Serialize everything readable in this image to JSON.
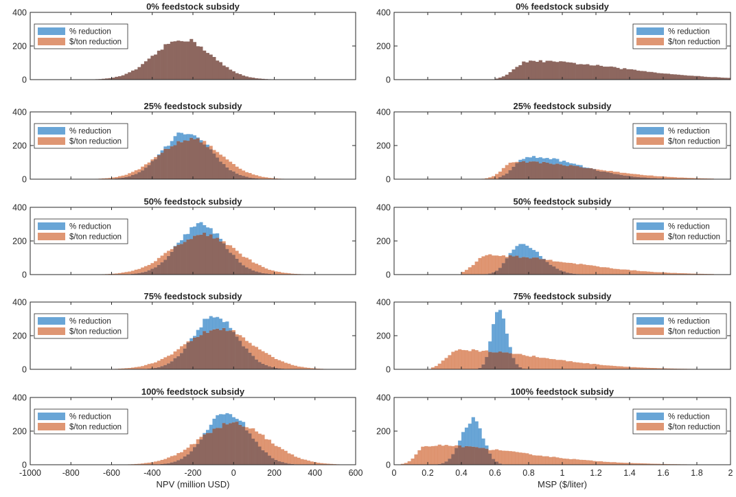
{
  "figure": {
    "legend_labels": [
      "% reduction",
      "$/ton reduction"
    ],
    "series_colors": {
      "pct": "#4f95cf",
      "ton": "#d9845a",
      "overlap": "#8d675f"
    }
  },
  "chart_data": [
    {
      "type": "histogram",
      "title": "0% feedstock subsidy",
      "column": "left",
      "xlabel": "",
      "ylabel": "",
      "xlim": [
        -1000,
        600
      ],
      "ylim": [
        0,
        400
      ],
      "yticks": [
        0,
        200,
        400
      ],
      "xticks": [
        -1000,
        -800,
        -600,
        -400,
        -200,
        0,
        200,
        400,
        600
      ],
      "legend_position": "top-left",
      "series": [
        {
          "name": "% reduction",
          "mean": -250,
          "sd": 140,
          "peak": 240,
          "skew": 0
        },
        {
          "name": "$/ton reduction",
          "mean": -250,
          "sd": 140,
          "peak": 240,
          "skew": 0
        }
      ]
    },
    {
      "type": "histogram",
      "title": "25% feedstock subsidy",
      "column": "left",
      "xlabel": "",
      "ylabel": "",
      "xlim": [
        -1000,
        600
      ],
      "ylim": [
        0,
        400
      ],
      "yticks": [
        0,
        200,
        400
      ],
      "xticks": [
        -1000,
        -800,
        -600,
        -400,
        -200,
        0,
        200,
        400,
        600
      ],
      "legend_position": "top-left",
      "series": [
        {
          "name": "% reduction",
          "mean": -230,
          "sd": 120,
          "peak": 280,
          "skew": 0
        },
        {
          "name": "$/ton reduction",
          "mean": -215,
          "sd": 150,
          "peak": 240,
          "skew": 0
        }
      ]
    },
    {
      "type": "histogram",
      "title": "50% feedstock subsidy",
      "column": "left",
      "xlabel": "",
      "ylabel": "",
      "xlim": [
        -1000,
        600
      ],
      "ylim": [
        0,
        400
      ],
      "yticks": [
        0,
        200,
        400
      ],
      "xticks": [
        -1000,
        -800,
        -600,
        -400,
        -200,
        0,
        200,
        400,
        600
      ],
      "legend_position": "top-left",
      "series": [
        {
          "name": "% reduction",
          "mean": -160,
          "sd": 115,
          "peak": 300,
          "skew": 0
        },
        {
          "name": "$/ton reduction",
          "mean": -150,
          "sd": 160,
          "peak": 240,
          "skew": 0
        }
      ]
    },
    {
      "type": "histogram",
      "title": "75% feedstock subsidy",
      "column": "left",
      "xlabel": "",
      "ylabel": "",
      "xlim": [
        -1000,
        600
      ],
      "ylim": [
        0,
        400
      ],
      "yticks": [
        0,
        200,
        400
      ],
      "xticks": [
        -1000,
        -800,
        -600,
        -400,
        -200,
        0,
        200,
        400,
        600
      ],
      "legend_position": "top-left",
      "series": [
        {
          "name": "% reduction",
          "mean": -90,
          "sd": 110,
          "peak": 320,
          "skew": 0
        },
        {
          "name": "$/ton reduction",
          "mean": -70,
          "sd": 170,
          "peak": 240,
          "skew": 0
        }
      ]
    },
    {
      "type": "histogram",
      "title": "100% feedstock subsidy",
      "column": "left",
      "xlabel": "NPV (million USD)",
      "ylabel": "",
      "xlim": [
        -1000,
        600
      ],
      "ylim": [
        0,
        400
      ],
      "yticks": [
        0,
        200,
        400
      ],
      "xticks": [
        -1000,
        -800,
        -600,
        -400,
        -200,
        0,
        200,
        400,
        600
      ],
      "legend_position": "top-left",
      "series": [
        {
          "name": "% reduction",
          "mean": -30,
          "sd": 110,
          "peak": 310,
          "skew": 0
        },
        {
          "name": "$/ton reduction",
          "mean": 0,
          "sd": 170,
          "peak": 245,
          "skew": 0
        }
      ]
    },
    {
      "type": "histogram",
      "title": "0% feedstock subsidy",
      "column": "right",
      "xlabel": "",
      "ylabel": "",
      "xlim": [
        0,
        2
      ],
      "ylim": [
        0,
        400
      ],
      "yticks": [
        0,
        200,
        400
      ],
      "xticks": [
        0,
        0.2,
        0.4,
        0.6,
        0.8,
        1,
        1.2,
        1.4,
        1.6,
        1.8,
        2
      ],
      "legend_position": "top-right",
      "series": [
        {
          "name": "% reduction",
          "mode": 0.8,
          "sd_left": 0.08,
          "sd_right": 0.55,
          "peak": 110,
          "lo": 0.6,
          "hi": 2.0
        },
        {
          "name": "$/ton reduction",
          "mode": 0.8,
          "sd_left": 0.08,
          "sd_right": 0.55,
          "peak": 110,
          "lo": 0.6,
          "hi": 2.0
        }
      ]
    },
    {
      "type": "histogram",
      "title": "25% feedstock subsidy",
      "column": "right",
      "xlabel": "",
      "ylabel": "",
      "xlim": [
        0,
        2
      ],
      "ylim": [
        0,
        400
      ],
      "yticks": [
        0,
        200,
        400
      ],
      "xticks": [
        0,
        0.2,
        0.4,
        0.6,
        0.8,
        1,
        1.2,
        1.4,
        1.6,
        1.8,
        2
      ],
      "legend_position": "top-right",
      "series": [
        {
          "name": "% reduction",
          "mode": 0.8,
          "sd_left": 0.08,
          "sd_right": 0.3,
          "peak": 135,
          "lo": 0.62,
          "hi": 1.6
        },
        {
          "name": "$/ton reduction",
          "mode": 0.72,
          "sd_left": 0.07,
          "sd_right": 0.45,
          "peak": 105,
          "lo": 0.52,
          "hi": 1.9
        }
      ]
    },
    {
      "type": "histogram",
      "title": "50% feedstock subsidy",
      "column": "right",
      "xlabel": "",
      "ylabel": "",
      "xlim": [
        0,
        2
      ],
      "ylim": [
        0,
        400
      ],
      "yticks": [
        0,
        200,
        400
      ],
      "xticks": [
        0,
        0.2,
        0.4,
        0.6,
        0.8,
        1,
        1.2,
        1.4,
        1.6,
        1.8,
        2
      ],
      "legend_position": "top-right",
      "series": [
        {
          "name": "% reduction",
          "mode": 0.75,
          "sd_left": 0.07,
          "sd_right": 0.12,
          "peak": 185,
          "lo": 0.55,
          "hi": 1.15
        },
        {
          "name": "$/ton reduction",
          "mode": 0.55,
          "sd_left": 0.07,
          "sd_right": 0.5,
          "peak": 115,
          "lo": 0.4,
          "hi": 1.9
        }
      ]
    },
    {
      "type": "histogram",
      "title": "75% feedstock subsidy",
      "column": "right",
      "xlabel": "",
      "ylabel": "",
      "xlim": [
        0,
        2
      ],
      "ylim": [
        0,
        400
      ],
      "yticks": [
        0,
        200,
        400
      ],
      "xticks": [
        0,
        0.2,
        0.4,
        0.6,
        0.8,
        1,
        1.2,
        1.4,
        1.6,
        1.8,
        2
      ],
      "legend_position": "top-right",
      "series": [
        {
          "name": "% reduction",
          "mode": 0.62,
          "sd_left": 0.04,
          "sd_right": 0.05,
          "peak": 355,
          "lo": 0.5,
          "hi": 0.8
        },
        {
          "name": "$/ton reduction",
          "mode": 0.38,
          "sd_left": 0.07,
          "sd_right": 0.5,
          "peak": 115,
          "lo": 0.22,
          "hi": 1.9
        }
      ]
    },
    {
      "type": "histogram",
      "title": "100% feedstock subsidy",
      "column": "right",
      "xlabel": "MSP ($/liter)",
      "ylabel": "",
      "xlim": [
        0,
        2
      ],
      "ylim": [
        0,
        400
      ],
      "yticks": [
        0,
        200,
        400
      ],
      "xticks": [
        0,
        0.2,
        0.4,
        0.6,
        0.8,
        1,
        1.2,
        1.4,
        1.6,
        1.8,
        2
      ],
      "legend_position": "top-right",
      "series": [
        {
          "name": "% reduction",
          "mode": 0.47,
          "sd_left": 0.07,
          "sd_right": 0.06,
          "peak": 270,
          "lo": 0.25,
          "hi": 0.65
        },
        {
          "name": "$/ton reduction",
          "mode": 0.2,
          "sd_left": 0.06,
          "sd_right": 0.55,
          "peak": 115,
          "lo": 0.05,
          "hi": 1.9
        }
      ]
    }
  ]
}
